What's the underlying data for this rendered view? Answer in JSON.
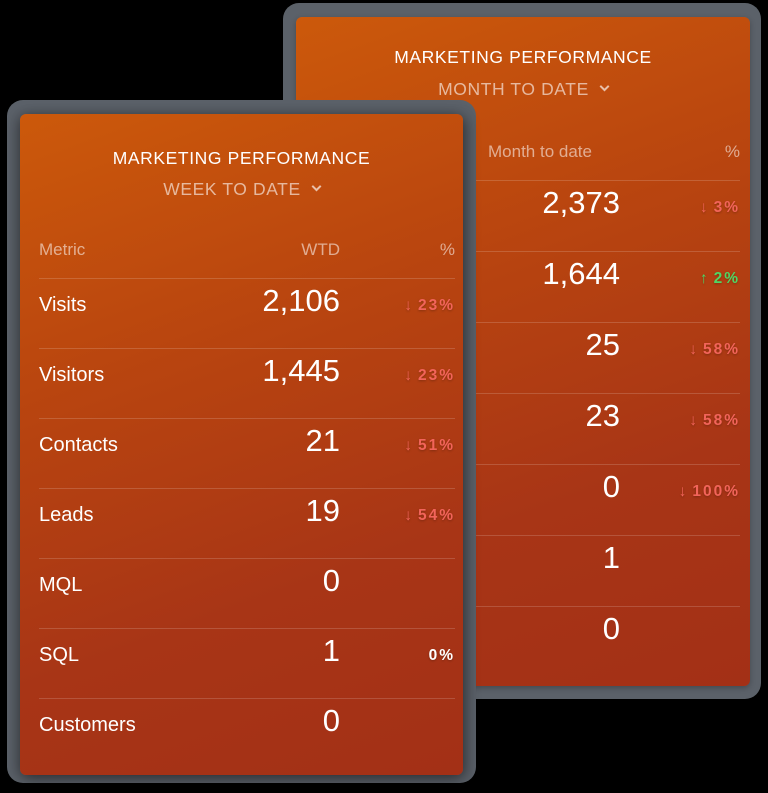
{
  "colors": {
    "background": "#000000",
    "frame": "#5b6169",
    "card_gradient_start": "#cc590b",
    "card_gradient_end": "#a33016",
    "negative": "#f2645a",
    "positive": "#4fd663",
    "neutral": "#ffffff"
  },
  "back_widget": {
    "title": "MARKETING PERFORMANCE",
    "period": "MONTH TO DATE",
    "columns": {
      "value": "Month to date",
      "pct": "%"
    },
    "rows": [
      {
        "value": "2,373",
        "arrow": "↓",
        "pct": "3%",
        "trend": "down"
      },
      {
        "value": "1,644",
        "arrow": "↑",
        "pct": "2%",
        "trend": "up"
      },
      {
        "value": "25",
        "arrow": "↓",
        "pct": "58%",
        "trend": "down"
      },
      {
        "value": "23",
        "arrow": "↓",
        "pct": "58%",
        "trend": "down"
      },
      {
        "value": "0",
        "arrow": "↓",
        "pct": "100%",
        "trend": "down"
      },
      {
        "value": "1",
        "arrow": "",
        "pct": "",
        "trend": "none"
      },
      {
        "value": "0",
        "arrow": "",
        "pct": "",
        "trend": "none"
      }
    ]
  },
  "front_widget": {
    "title": "MARKETING PERFORMANCE",
    "period": "WEEK TO DATE",
    "columns": {
      "metric": "Metric",
      "value": "WTD",
      "pct": "%"
    },
    "rows": [
      {
        "metric": "Visits",
        "value": "2,106",
        "arrow": "↓",
        "pct": "23%",
        "trend": "down"
      },
      {
        "metric": "Visitors",
        "value": "1,445",
        "arrow": "↓",
        "pct": "23%",
        "trend": "down"
      },
      {
        "metric": "Contacts",
        "value": "21",
        "arrow": "↓",
        "pct": "51%",
        "trend": "down"
      },
      {
        "metric": "Leads",
        "value": "19",
        "arrow": "↓",
        "pct": "54%",
        "trend": "down"
      },
      {
        "metric": "MQL",
        "value": "0",
        "arrow": "",
        "pct": "",
        "trend": "none"
      },
      {
        "metric": "SQL",
        "value": "1",
        "arrow": "",
        "pct": "0%",
        "trend": "neutral"
      },
      {
        "metric": "Customers",
        "value": "0",
        "arrow": "",
        "pct": "",
        "trend": "none"
      }
    ]
  }
}
